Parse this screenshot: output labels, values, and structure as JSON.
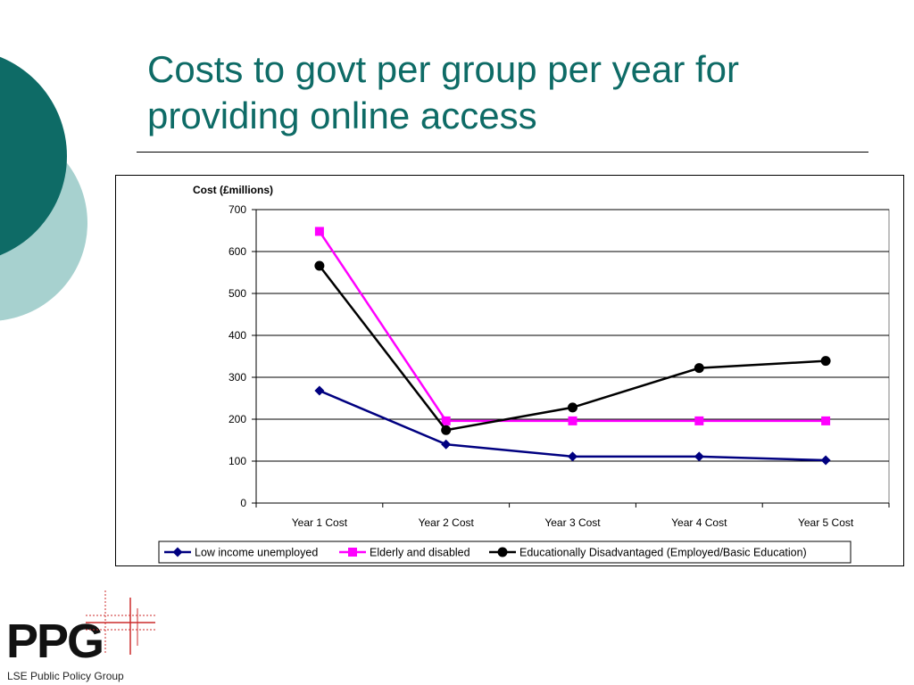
{
  "slide": {
    "title": "Costs to govt per group per year for providing online access"
  },
  "logo": {
    "text": "PPG",
    "subtitle": "LSE Public Policy Group"
  },
  "colors": {
    "title": "#0e6b66",
    "decor_dark": "#0e6b66",
    "decor_light": "#a7d1cf",
    "logo_mark": "#cc2b2b"
  },
  "chart_data": {
    "type": "line",
    "ylabel": "Cost (£millions)",
    "xlabel": "",
    "categories": [
      "Year 1 Cost",
      "Year 2 Cost",
      "Year 3 Cost",
      "Year 4 Cost",
      "Year 5 Cost"
    ],
    "ylim": [
      0,
      700
    ],
    "yticks": [
      0,
      100,
      200,
      300,
      400,
      500,
      600,
      700
    ],
    "grid": "horizontal",
    "legend": "bottom",
    "series": [
      {
        "name": "Low income unemployed",
        "color": "#000080",
        "marker": "diamond",
        "values": [
          268,
          140,
          111,
          111,
          102
        ]
      },
      {
        "name": "Elderly and disabled",
        "color": "#ff00ff",
        "marker": "square",
        "values": [
          648,
          196,
          196,
          196,
          196
        ]
      },
      {
        "name": "Educationally Disadvantaged (Employed/Basic Education)",
        "color": "#000000",
        "marker": "circle",
        "values": [
          566,
          174,
          228,
          322,
          339
        ]
      }
    ]
  }
}
